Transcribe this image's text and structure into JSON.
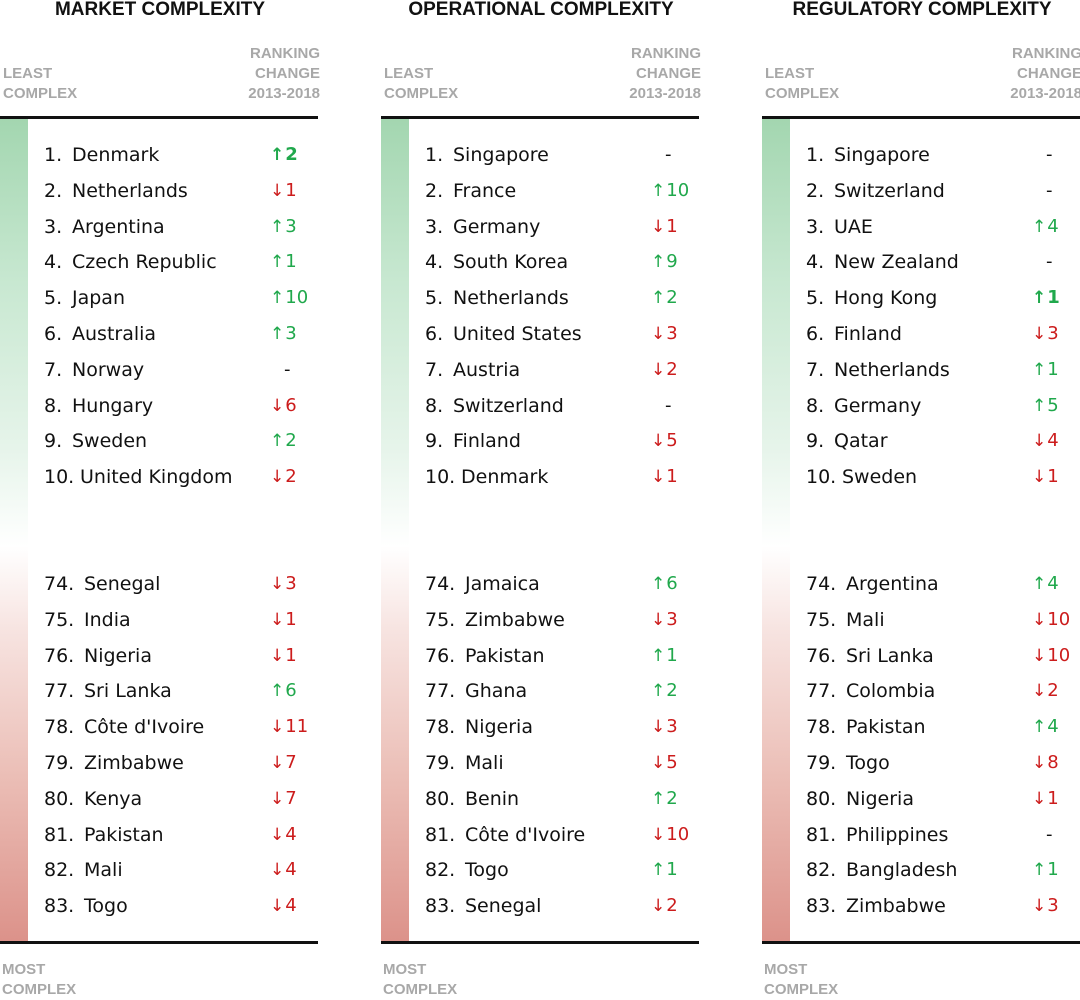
{
  "labels": {
    "least": [
      "LEAST",
      "COMPLEX"
    ],
    "most": [
      "MOST",
      "COMPLEX"
    ],
    "ranking_change": [
      "RANKING",
      "CHANGE",
      "2013-2018"
    ]
  },
  "colors": {
    "up": "#20a84c",
    "down": "#cc1c1c",
    "gradient_top": "#a3d6b0",
    "gradient_bottom": "#dc928a"
  },
  "chart_data": [
    {
      "type": "table",
      "title": "MARKET COMPLEXITY",
      "top": [
        {
          "rank": "1.",
          "country": "Denmark",
          "change": 2,
          "dir": "up",
          "bold": true
        },
        {
          "rank": "2.",
          "country": "Netherlands",
          "change": 1,
          "dir": "down"
        },
        {
          "rank": "3.",
          "country": "Argentina",
          "change": 3,
          "dir": "up"
        },
        {
          "rank": "4.",
          "country": "Czech Republic",
          "change": 1,
          "dir": "up"
        },
        {
          "rank": "5.",
          "country": "Japan",
          "change": 10,
          "dir": "up"
        },
        {
          "rank": "6.",
          "country": "Australia",
          "change": 3,
          "dir": "up"
        },
        {
          "rank": "7.",
          "country": "Norway",
          "change": null,
          "dir": "none"
        },
        {
          "rank": "8.",
          "country": "Hungary",
          "change": 6,
          "dir": "down"
        },
        {
          "rank": "9.",
          "country": "Sweden",
          "change": 2,
          "dir": "up"
        },
        {
          "rank": "10.",
          "country": "United Kingdom",
          "change": 2,
          "dir": "down"
        }
      ],
      "bottom": [
        {
          "rank": "74.",
          "country": "Senegal",
          "change": 3,
          "dir": "down"
        },
        {
          "rank": "75.",
          "country": "India",
          "change": 1,
          "dir": "down"
        },
        {
          "rank": "76.",
          "country": "Nigeria",
          "change": 1,
          "dir": "down"
        },
        {
          "rank": "77.",
          "country": "Sri Lanka",
          "change": 6,
          "dir": "up"
        },
        {
          "rank": "78.",
          "country": "Côte d'Ivoire",
          "change": 11,
          "dir": "down"
        },
        {
          "rank": "79.",
          "country": "Zimbabwe",
          "change": 7,
          "dir": "down"
        },
        {
          "rank": "80.",
          "country": "Kenya",
          "change": 7,
          "dir": "down"
        },
        {
          "rank": "81.",
          "country": "Pakistan",
          "change": 4,
          "dir": "down"
        },
        {
          "rank": "82.",
          "country": "Mali",
          "change": 4,
          "dir": "down"
        },
        {
          "rank": "83.",
          "country": "Togo",
          "change": 4,
          "dir": "down"
        }
      ]
    },
    {
      "type": "table",
      "title": "OPERATIONAL COMPLEXITY",
      "top": [
        {
          "rank": "1.",
          "country": "Singapore",
          "change": null,
          "dir": "none"
        },
        {
          "rank": "2.",
          "country": "France",
          "change": 10,
          "dir": "up"
        },
        {
          "rank": "3.",
          "country": "Germany",
          "change": 1,
          "dir": "down"
        },
        {
          "rank": "4.",
          "country": "South Korea",
          "change": 9,
          "dir": "up"
        },
        {
          "rank": "5.",
          "country": "Netherlands",
          "change": 2,
          "dir": "up"
        },
        {
          "rank": "6.",
          "country": "United States",
          "change": 3,
          "dir": "down"
        },
        {
          "rank": "7.",
          "country": "Austria",
          "change": 2,
          "dir": "down"
        },
        {
          "rank": "8.",
          "country": "Switzerland",
          "change": null,
          "dir": "none"
        },
        {
          "rank": "9.",
          "country": "Finland",
          "change": 5,
          "dir": "down"
        },
        {
          "rank": "10.",
          "country": "Denmark",
          "change": 1,
          "dir": "down"
        }
      ],
      "bottom": [
        {
          "rank": "74.",
          "country": "Jamaica",
          "change": 6,
          "dir": "up"
        },
        {
          "rank": "75.",
          "country": "Zimbabwe",
          "change": 3,
          "dir": "down"
        },
        {
          "rank": "76.",
          "country": "Pakistan",
          "change": 1,
          "dir": "up"
        },
        {
          "rank": "77.",
          "country": "Ghana",
          "change": 2,
          "dir": "up"
        },
        {
          "rank": "78.",
          "country": "Nigeria",
          "change": 3,
          "dir": "down"
        },
        {
          "rank": "79.",
          "country": "Mali",
          "change": 5,
          "dir": "down"
        },
        {
          "rank": "80.",
          "country": "Benin",
          "change": 2,
          "dir": "up"
        },
        {
          "rank": "81.",
          "country": "Côte d'Ivoire",
          "change": 10,
          "dir": "down"
        },
        {
          "rank": "82.",
          "country": "Togo",
          "change": 1,
          "dir": "up"
        },
        {
          "rank": "83.",
          "country": "Senegal",
          "change": 2,
          "dir": "down"
        }
      ]
    },
    {
      "type": "table",
      "title": "REGULATORY COMPLEXITY",
      "top": [
        {
          "rank": "1.",
          "country": "Singapore",
          "change": null,
          "dir": "none"
        },
        {
          "rank": "2.",
          "country": "Switzerland",
          "change": null,
          "dir": "none"
        },
        {
          "rank": "3.",
          "country": "UAE",
          "change": 4,
          "dir": "up"
        },
        {
          "rank": "4.",
          "country": "New Zealand",
          "change": null,
          "dir": "none"
        },
        {
          "rank": "5.",
          "country": "Hong Kong",
          "change": 1,
          "dir": "up",
          "bold": true
        },
        {
          "rank": "6.",
          "country": "Finland",
          "change": 3,
          "dir": "down"
        },
        {
          "rank": "7.",
          "country": "Netherlands",
          "change": 1,
          "dir": "up"
        },
        {
          "rank": "8.",
          "country": "Germany",
          "change": 5,
          "dir": "up"
        },
        {
          "rank": "9.",
          "country": "Qatar",
          "change": 4,
          "dir": "down"
        },
        {
          "rank": "10.",
          "country": "Sweden",
          "change": 1,
          "dir": "down"
        }
      ],
      "bottom": [
        {
          "rank": "74.",
          "country": "Argentina",
          "change": 4,
          "dir": "up"
        },
        {
          "rank": "75.",
          "country": "Mali",
          "change": 10,
          "dir": "down"
        },
        {
          "rank": "76.",
          "country": "Sri Lanka",
          "change": 10,
          "dir": "down"
        },
        {
          "rank": "77.",
          "country": "Colombia",
          "change": 2,
          "dir": "down"
        },
        {
          "rank": "78.",
          "country": "Pakistan",
          "change": 4,
          "dir": "up"
        },
        {
          "rank": "79.",
          "country": "Togo",
          "change": 8,
          "dir": "down"
        },
        {
          "rank": "80.",
          "country": "Nigeria",
          "change": 1,
          "dir": "down"
        },
        {
          "rank": "81.",
          "country": "Philippines",
          "change": null,
          "dir": "none"
        },
        {
          "rank": "82.",
          "country": "Bangladesh",
          "change": 1,
          "dir": "up"
        },
        {
          "rank": "83.",
          "country": "Zimbabwe",
          "change": 3,
          "dir": "down"
        }
      ]
    }
  ]
}
